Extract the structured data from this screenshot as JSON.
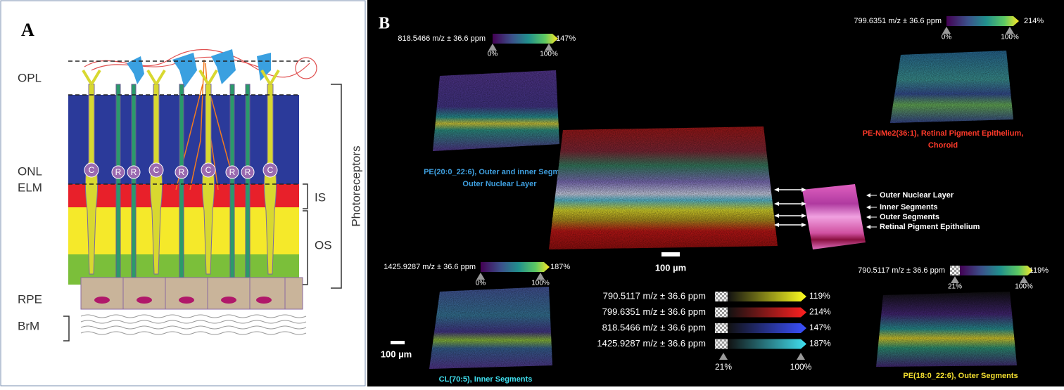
{
  "panel_a": {
    "label": "A",
    "layers": [
      "OPL",
      "ONL",
      "ELM",
      "RPE",
      "BrM"
    ],
    "brackets": [
      "IS",
      "OS",
      "Photoreceptors"
    ],
    "rod_labels": [
      "R",
      "R",
      "R",
      "R",
      "R"
    ],
    "cone_labels": [
      "C",
      "C",
      "C",
      "C"
    ]
  },
  "panel_b": {
    "label": "B",
    "ion_images": [
      {
        "colorbar_label": "818.5466 m/z ± 36.6 ppm",
        "max": "147%",
        "ticks": [
          "0%",
          "100%"
        ],
        "caption": [
          "PE(20:0_22:6), Outer and inner Segments",
          "Outer Nuclear Layer"
        ]
      },
      {
        "colorbar_label": "799.6351 m/z ± 36.6 ppm",
        "max": "214%",
        "ticks": [
          "0%",
          "100%"
        ],
        "caption": [
          "PE-NMe2(36:1), Retinal Pigment Epithelium,",
          "Choroid"
        ]
      },
      {
        "colorbar_label": "1425.9287 m/z ± 36.6 ppm",
        "max": "187%",
        "ticks": [
          "0%",
          "100%"
        ],
        "caption": [
          "CL(70:5), Inner Segments"
        ]
      },
      {
        "colorbar_label": "790.5117 m/z ± 36.6 ppm",
        "max": "119%",
        "ticks": [
          "21%",
          "100%"
        ],
        "caption": [
          "PE(18:0_22:6), Outer Segments"
        ]
      }
    ],
    "overlay": {
      "scale_bar": "100 µm",
      "histology_labels": [
        "Outer Nuclear Layer",
        "Inner Segments",
        "Outer Segments",
        "Retinal Pigment Epithelium"
      ]
    },
    "legend": {
      "rows": [
        {
          "label": "790.5117 m/z ± 36.6 ppm",
          "max": "119%"
        },
        {
          "label": "799.6351 m/z ± 36.6 ppm",
          "max": "214%"
        },
        {
          "label": "818.5466 m/z ± 36.6 ppm",
          "max": "147%"
        },
        {
          "label": "1425.9287 m/z ± 36.6 ppm",
          "max": "187%"
        }
      ],
      "ticks": [
        "21%",
        "100%"
      ]
    },
    "scale_bar": "100 µm"
  }
}
